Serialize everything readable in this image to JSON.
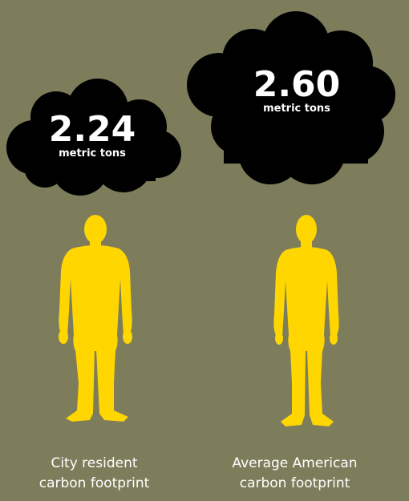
{
  "items": [
    {
      "value": "2.24",
      "unit": "metric tons",
      "label_line1": "City resident",
      "label_line2": "carbon footprint"
    },
    {
      "value": "2.60",
      "unit": "metric tons",
      "label_line1": "Average American",
      "label_line2": "carbon footprint"
    }
  ],
  "colors": {
    "background": "#7d7d5c",
    "cloud": "#000000",
    "figure": "#ffd600",
    "text": "#ffffff"
  }
}
